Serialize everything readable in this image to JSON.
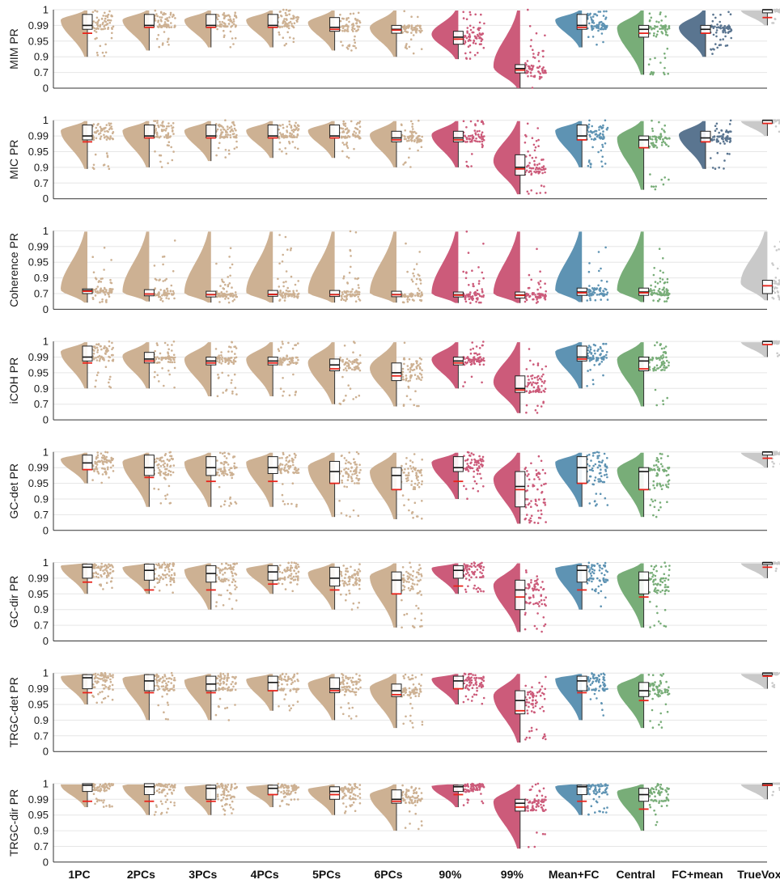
{
  "chart_data": {
    "type": "raincloud",
    "y_tick_labels": [
      "0",
      "0.7",
      "0.9",
      "0.95",
      "0.99",
      "1"
    ],
    "y_tick_values": [
      0,
      0.7,
      0.9,
      0.95,
      0.99,
      1
    ],
    "categories": [
      "1PC",
      "2PCs",
      "3PCs",
      "4PCs",
      "5PCs",
      "6PCs",
      "90%",
      "99%",
      "Mean+FC",
      "Central",
      "FC+mean",
      "TrueVox"
    ],
    "colors": [
      "#cdb193",
      "#cdb193",
      "#cdb193",
      "#cdb193",
      "#cdb193",
      "#cdb193",
      "#cc5b7a",
      "#cc5b7a",
      "#5e93b3",
      "#78ad78",
      "#5a7590",
      "#c9c9c9"
    ],
    "mean_marker_color": "#e8231a",
    "panels": [
      {
        "ylabel": "MIM PR",
        "medians": [
          0.99,
          0.99,
          0.99,
          0.99,
          0.985,
          0.98,
          0.96,
          0.75,
          0.99,
          0.98,
          0.98,
          1.0
        ],
        "q1": [
          0.98,
          0.985,
          0.985,
          0.985,
          0.975,
          0.97,
          0.94,
          0.68,
          0.98,
          0.96,
          0.97,
          0.998
        ],
        "q3": [
          0.997,
          0.997,
          0.997,
          0.997,
          0.995,
          0.99,
          0.975,
          0.8,
          0.997,
          0.99,
          0.99,
          1.0
        ],
        "means": [
          0.97,
          0.985,
          0.985,
          0.985,
          0.98,
          0.978,
          0.955,
          0.73,
          0.985,
          0.97,
          0.97,
          0.995
        ],
        "mins": [
          0.9,
          0.92,
          0.93,
          0.93,
          0.92,
          0.9,
          0.87,
          0.0,
          0.93,
          0.6,
          0.9,
          0.99
        ],
        "present": [
          true,
          true,
          true,
          true,
          true,
          true,
          true,
          true,
          true,
          true,
          true,
          true
        ]
      },
      {
        "ylabel": "MIC PR",
        "medians": [
          0.99,
          0.99,
          0.99,
          0.99,
          0.99,
          0.985,
          0.985,
          0.9,
          0.99,
          0.98,
          0.985,
          1.0
        ],
        "q1": [
          0.98,
          0.985,
          0.985,
          0.985,
          0.985,
          0.975,
          0.975,
          0.8,
          0.98,
          0.96,
          0.975,
          0.998
        ],
        "q3": [
          0.997,
          0.997,
          0.997,
          0.997,
          0.997,
          0.993,
          0.993,
          0.94,
          0.997,
          0.99,
          0.993,
          1.0
        ],
        "means": [
          0.975,
          0.985,
          0.985,
          0.985,
          0.985,
          0.98,
          0.98,
          0.88,
          0.98,
          0.96,
          0.975,
          0.998
        ],
        "mins": [
          0.88,
          0.9,
          0.92,
          0.93,
          0.93,
          0.9,
          0.9,
          0.2,
          0.9,
          0.4,
          0.88,
          0.99
        ],
        "present": [
          true,
          true,
          true,
          true,
          true,
          true,
          true,
          true,
          true,
          true,
          true,
          true
        ]
      },
      {
        "ylabel": "Coherence PR",
        "medians": [
          0.74,
          0.68,
          0.66,
          0.67,
          0.66,
          0.66,
          0.65,
          0.64,
          0.72,
          0.72,
          null,
          0.8
        ],
        "q1": [
          0.7,
          0.6,
          0.55,
          0.58,
          0.57,
          0.56,
          0.55,
          0.5,
          0.62,
          0.62,
          null,
          0.7
        ],
        "q3": [
          0.76,
          0.75,
          0.73,
          0.74,
          0.74,
          0.73,
          0.72,
          0.72,
          0.77,
          0.77,
          null,
          0.87
        ],
        "means": [
          0.73,
          0.68,
          0.65,
          0.66,
          0.65,
          0.65,
          0.63,
          0.62,
          0.71,
          0.71,
          null,
          0.8
        ],
        "mins": [
          0.3,
          0.35,
          0.3,
          0.3,
          0.3,
          0.3,
          0.28,
          0.28,
          0.32,
          0.32,
          null,
          0.4
        ],
        "present": [
          true,
          true,
          true,
          true,
          true,
          true,
          true,
          true,
          true,
          true,
          false,
          true
        ]
      },
      {
        "ylabel": "iCOH PR",
        "medians": [
          0.99,
          0.985,
          0.98,
          0.98,
          0.97,
          0.95,
          0.98,
          0.9,
          0.99,
          0.98,
          null,
          1.0
        ],
        "q1": [
          0.98,
          0.975,
          0.97,
          0.97,
          0.955,
          0.925,
          0.97,
          0.85,
          0.98,
          0.955,
          null,
          0.998
        ],
        "q3": [
          0.997,
          0.993,
          0.99,
          0.99,
          0.985,
          0.975,
          0.99,
          0.94,
          0.997,
          0.99,
          null,
          1.0
        ],
        "means": [
          0.975,
          0.98,
          0.975,
          0.975,
          0.96,
          0.94,
          0.975,
          0.88,
          0.985,
          0.96,
          null,
          0.998
        ],
        "mins": [
          0.9,
          0.9,
          0.8,
          0.8,
          0.7,
          0.6,
          0.9,
          0.3,
          0.9,
          0.6,
          null,
          0.99
        ],
        "present": [
          true,
          true,
          true,
          true,
          true,
          true,
          true,
          true,
          true,
          true,
          false,
          true
        ]
      },
      {
        "ylabel": "GC-det PR",
        "medians": [
          0.993,
          0.99,
          0.99,
          0.99,
          0.98,
          0.97,
          0.99,
          0.94,
          0.99,
          0.98,
          null,
          1.0
        ],
        "q1": [
          0.985,
          0.97,
          0.97,
          0.975,
          0.95,
          0.93,
          0.98,
          0.8,
          0.95,
          0.93,
          null,
          0.998
        ],
        "q3": [
          0.998,
          0.998,
          0.997,
          0.997,
          0.994,
          0.99,
          0.997,
          0.98,
          0.997,
          0.99,
          null,
          1.0
        ],
        "means": [
          0.985,
          0.965,
          0.955,
          0.955,
          0.95,
          0.93,
          0.955,
          0.93,
          0.95,
          0.93,
          null,
          0.996
        ],
        "mins": [
          0.95,
          0.8,
          0.8,
          0.8,
          0.6,
          0.5,
          0.9,
          0.3,
          0.8,
          0.6,
          null,
          0.99
        ],
        "present": [
          true,
          true,
          true,
          true,
          true,
          true,
          true,
          true,
          true,
          true,
          false,
          true
        ]
      },
      {
        "ylabel": "GC-dir PR",
        "medians": [
          0.997,
          0.995,
          0.993,
          0.994,
          0.99,
          0.985,
          0.995,
          0.96,
          0.995,
          0.985,
          null,
          1.0
        ],
        "q1": [
          0.99,
          0.985,
          0.98,
          0.985,
          0.97,
          0.95,
          0.99,
          0.9,
          0.98,
          0.95,
          null,
          0.999
        ],
        "q3": [
          0.999,
          0.999,
          0.998,
          0.998,
          0.997,
          0.994,
          0.998,
          0.985,
          0.998,
          0.994,
          null,
          1.0
        ],
        "means": [
          0.98,
          0.96,
          0.96,
          0.975,
          0.96,
          0.95,
          0.97,
          0.94,
          0.96,
          0.94,
          null,
          0.997
        ],
        "mins": [
          0.95,
          0.95,
          0.9,
          0.95,
          0.9,
          0.6,
          0.95,
          0.4,
          0.9,
          0.6,
          null,
          0.99
        ],
        "present": [
          true,
          true,
          true,
          true,
          true,
          true,
          true,
          true,
          true,
          true,
          false,
          true
        ]
      },
      {
        "ylabel": "TRGC-det PR",
        "medians": [
          0.997,
          0.995,
          0.993,
          0.994,
          0.99,
          0.985,
          0.995,
          0.96,
          0.995,
          0.985,
          null,
          1.0
        ],
        "q1": [
          0.99,
          0.985,
          0.985,
          0.985,
          0.98,
          0.97,
          0.99,
          0.92,
          0.985,
          0.97,
          null,
          0.999
        ],
        "q3": [
          0.999,
          0.999,
          0.998,
          0.998,
          0.997,
          0.993,
          0.998,
          0.985,
          0.998,
          0.994,
          null,
          1.0
        ],
        "means": [
          0.98,
          0.98,
          0.98,
          0.985,
          0.985,
          0.975,
          0.99,
          0.93,
          0.98,
          0.96,
          null,
          0.998
        ],
        "mins": [
          0.95,
          0.9,
          0.9,
          0.93,
          0.9,
          0.8,
          0.95,
          0.4,
          0.9,
          0.8,
          null,
          0.99
        ],
        "present": [
          true,
          true,
          true,
          true,
          true,
          true,
          true,
          true,
          true,
          true,
          false,
          true
        ]
      },
      {
        "ylabel": "TRGC-dir PR",
        "medians": [
          0.999,
          0.998,
          0.997,
          0.997,
          0.995,
          0.99,
          0.998,
          0.98,
          0.998,
          0.993,
          null,
          1.0
        ],
        "q1": [
          0.995,
          0.993,
          0.99,
          0.993,
          0.99,
          0.98,
          0.995,
          0.96,
          0.993,
          0.985,
          null,
          1.0
        ],
        "q3": [
          1.0,
          1.0,
          0.999,
          0.999,
          0.998,
          0.996,
          0.999,
          0.99,
          0.999,
          0.997,
          null,
          1.0
        ],
        "means": [
          0.985,
          0.985,
          0.985,
          0.993,
          0.993,
          0.985,
          0.993,
          0.97,
          0.985,
          0.965,
          null,
          0.999
        ],
        "mins": [
          0.97,
          0.95,
          0.95,
          0.97,
          0.95,
          0.9,
          0.97,
          0.6,
          0.95,
          0.9,
          null,
          0.99
        ],
        "present": [
          true,
          true,
          true,
          true,
          true,
          true,
          true,
          true,
          true,
          true,
          false,
          true
        ]
      }
    ]
  }
}
